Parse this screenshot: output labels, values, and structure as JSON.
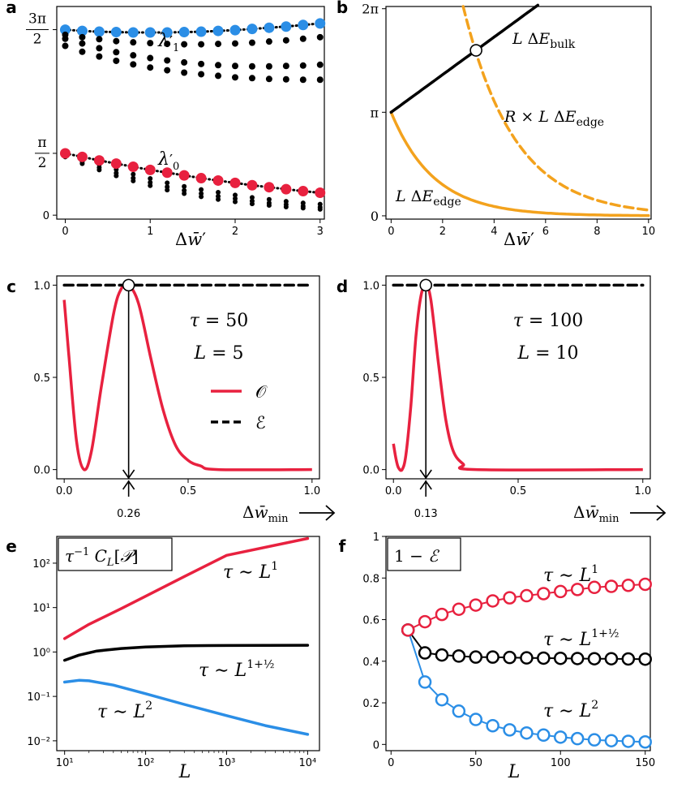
{
  "colors": {
    "red": "#e8213f",
    "blue": "#2b8ee6",
    "black": "#000000",
    "orange": "#f3a21d"
  },
  "panel_labels": [
    "a",
    "b",
    "c",
    "d",
    "e",
    "f"
  ],
  "chart_data": [
    {
      "panel": "a",
      "type": "scatter",
      "xlabel": "Δw̄′",
      "xticks": [
        "0",
        "1",
        "2",
        "3"
      ],
      "yticks": [
        "0",
        "π/2",
        "3π/2"
      ],
      "xlim": [
        -0.1,
        3.05
      ],
      "ylim": [
        -0.1,
        5.3
      ],
      "annotations": [
        "λ′1",
        "λ′0"
      ],
      "x": [
        0,
        0.2,
        0.4,
        0.6,
        0.8,
        1.0,
        1.2,
        1.4,
        1.6,
        1.8,
        2.0,
        2.2,
        2.4,
        2.6,
        2.8,
        3.0
      ],
      "series": [
        {
          "color": "blue",
          "size": 6.5,
          "values": [
            4.71,
            4.68,
            4.66,
            4.65,
            4.64,
            4.64,
            4.64,
            4.65,
            4.66,
            4.68,
            4.7,
            4.73,
            4.76,
            4.79,
            4.83,
            4.87
          ]
        },
        {
          "color": "black",
          "size": 4,
          "values": [
            4.58,
            4.52,
            4.47,
            4.42,
            4.39,
            4.37,
            4.35,
            4.34,
            4.34,
            4.35,
            4.36,
            4.38,
            4.41,
            4.44,
            4.48,
            4.52
          ]
        },
        {
          "color": "black",
          "size": 4,
          "values": [
            4.48,
            4.36,
            4.24,
            4.14,
            4.06,
            3.99,
            3.93,
            3.88,
            3.84,
            3.81,
            3.79,
            3.78,
            3.78,
            3.79,
            3.8,
            3.82
          ]
        },
        {
          "color": "black",
          "size": 4,
          "values": [
            4.3,
            4.15,
            4.03,
            3.92,
            3.83,
            3.75,
            3.68,
            3.62,
            3.58,
            3.54,
            3.5,
            3.48,
            3.46,
            3.45,
            3.44,
            3.44
          ]
        },
        {
          "color": "black",
          "size": 3,
          "values": [
            1.55,
            1.42,
            1.28,
            1.16,
            1.04,
            0.93,
            0.82,
            0.73,
            0.65,
            0.58,
            0.51,
            0.45,
            0.4,
            0.35,
            0.31,
            0.28
          ]
        },
        {
          "color": "black",
          "size": 3,
          "values": [
            1.51,
            1.36,
            1.21,
            1.07,
            0.94,
            0.83,
            0.72,
            0.63,
            0.55,
            0.48,
            0.42,
            0.36,
            0.31,
            0.27,
            0.23,
            0.2
          ]
        },
        {
          "color": "black",
          "size": 3,
          "values": [
            1.48,
            1.31,
            1.15,
            1.0,
            0.87,
            0.75,
            0.64,
            0.55,
            0.47,
            0.4,
            0.34,
            0.29,
            0.25,
            0.21,
            0.18,
            0.15
          ]
        },
        {
          "color": "red",
          "size": 6.5,
          "values": [
            1.57,
            1.48,
            1.39,
            1.31,
            1.23,
            1.15,
            1.08,
            1.01,
            0.94,
            0.88,
            0.82,
            0.76,
            0.71,
            0.66,
            0.61,
            0.57
          ]
        }
      ]
    },
    {
      "panel": "b",
      "type": "line",
      "xlabel": "Δw̄′",
      "xticks": [
        "0",
        "2",
        "4",
        "6",
        "8",
        "10"
      ],
      "yticks": [
        "0",
        "π",
        "2π"
      ],
      "xlim": [
        -0.2,
        10.1
      ],
      "ylim": [
        -0.1,
        6.35
      ],
      "labels": [
        "L ΔE_bulk",
        "R × L ΔE_edge",
        "L ΔE_edge"
      ],
      "marker": {
        "x": 3.3,
        "y": 5.02
      },
      "series": [
        {
          "name": "L ΔE_bulk",
          "color": "black",
          "style": "solid",
          "formula": "pi+0.57x"
        },
        {
          "name": "R × L ΔE_edge",
          "color": "orange",
          "style": "dashed",
          "formula": "8.2*pi*exp(-0.5x)"
        },
        {
          "name": "L ΔE_edge",
          "color": "orange",
          "style": "solid",
          "formula": "pi*exp(-0.6x)"
        }
      ]
    },
    {
      "panel": "c",
      "type": "line",
      "xticks": [
        "0.0",
        "0.5",
        "1.0"
      ],
      "yticks": [
        "0.0",
        "0.5",
        "1.0"
      ],
      "xlim": [
        -0.03,
        1.03
      ],
      "ylim": [
        -0.05,
        1.05
      ],
      "xlabel": "Δw̄min",
      "params": [
        "τ = 50",
        "L = 5"
      ],
      "marker_x": 0.26,
      "marker_label": "0.26",
      "legend": [
        "𝒪",
        "ℰ"
      ],
      "series": [
        {
          "name": "𝒪",
          "color": "red",
          "points": [
            [
              0,
              0.92
            ],
            [
              0.02,
              0.6
            ],
            [
              0.05,
              0.15
            ],
            [
              0.08,
              0.0
            ],
            [
              0.11,
              0.1
            ],
            [
              0.15,
              0.45
            ],
            [
              0.2,
              0.85
            ],
            [
              0.23,
              0.98
            ],
            [
              0.26,
              1.0
            ],
            [
              0.3,
              0.9
            ],
            [
              0.35,
              0.6
            ],
            [
              0.4,
              0.32
            ],
            [
              0.45,
              0.13
            ],
            [
              0.5,
              0.05
            ],
            [
              0.55,
              0.02
            ],
            [
              0.62,
              0.0
            ],
            [
              1.0,
              0.0
            ]
          ]
        },
        {
          "name": "ℰ",
          "color": "black",
          "style": "dashed",
          "points": [
            [
              0,
              1.0
            ],
            [
              1.0,
              1.0
            ]
          ]
        }
      ]
    },
    {
      "panel": "d",
      "type": "line",
      "xticks": [
        "0.0",
        "0.5",
        "1.0"
      ],
      "yticks": [
        "0.0",
        "0.5",
        "1.0"
      ],
      "xlim": [
        -0.03,
        1.03
      ],
      "ylim": [
        -0.05,
        1.05
      ],
      "xlabel": "Δw̄min",
      "params": [
        "τ = 100",
        "L = 10"
      ],
      "marker_x": 0.13,
      "marker_label": "0.13",
      "series": [
        {
          "name": "𝒪",
          "color": "red",
          "points": [
            [
              0,
              0.14
            ],
            [
              0.01,
              0.06
            ],
            [
              0.02,
              0.01
            ],
            [
              0.035,
              0.0
            ],
            [
              0.05,
              0.08
            ],
            [
              0.07,
              0.35
            ],
            [
              0.09,
              0.72
            ],
            [
              0.11,
              0.94
            ],
            [
              0.13,
              1.0
            ],
            [
              0.15,
              0.92
            ],
            [
              0.18,
              0.58
            ],
            [
              0.21,
              0.27
            ],
            [
              0.24,
              0.1
            ],
            [
              0.28,
              0.03
            ],
            [
              0.33,
              0.0
            ],
            [
              1.0,
              0.0
            ]
          ]
        },
        {
          "name": "ℰ",
          "color": "black",
          "style": "dashed",
          "points": [
            [
              0,
              1.0
            ],
            [
              1.0,
              1.0
            ]
          ]
        }
      ]
    },
    {
      "panel": "e",
      "type": "line",
      "xscale": "log",
      "yscale": "log",
      "xlabel": "L",
      "title": "τ⁻¹ C_L[𝒫]",
      "xticks": [
        "10¹",
        "10²",
        "10³",
        "10⁴"
      ],
      "yticks": [
        "10⁻²",
        "10⁻¹",
        "10⁰",
        "10¹",
        "10²"
      ],
      "xlim": [
        8,
        14000
      ],
      "ylim": [
        0.006,
        400
      ],
      "series": [
        {
          "name": "τ ∼ L¹",
          "color": "red",
          "points": [
            [
              10,
              2.0
            ],
            [
              20,
              4.2
            ],
            [
              50,
              9.5
            ],
            [
              100,
              18
            ],
            [
              300,
              50
            ],
            [
              1000,
              150
            ],
            [
              3000,
              420
            ],
            [
              10000,
              1400
            ]
          ],
          "exp_shift": true
        },
        {
          "name": "τ ∼ L^{1+½}",
          "color": "black",
          "points": [
            [
              10,
              0.65
            ],
            [
              15,
              0.85
            ],
            [
              25,
              1.05
            ],
            [
              50,
              1.2
            ],
            [
              100,
              1.3
            ],
            [
              300,
              1.38
            ],
            [
              1000,
              1.4
            ],
            [
              10000,
              1.42
            ]
          ]
        },
        {
          "name": "τ ∼ L²",
          "color": "blue",
          "points": [
            [
              10,
              0.21
            ],
            [
              15,
              0.23
            ],
            [
              20,
              0.225
            ],
            [
              40,
              0.18
            ],
            [
              100,
              0.115
            ],
            [
              300,
              0.066
            ],
            [
              1000,
              0.037
            ],
            [
              3000,
              0.022
            ],
            [
              10000,
              0.014
            ]
          ]
        }
      ]
    },
    {
      "panel": "f",
      "type": "line",
      "xlabel": "L",
      "title": "1 − ℰ",
      "xticks": [
        "0",
        "50",
        "100",
        "150"
      ],
      "yticks": [
        "0",
        "0.2",
        "0.4",
        "0.6",
        "0.8",
        "1"
      ],
      "xlim": [
        -3,
        153
      ],
      "ylim": [
        -0.03,
        1.0
      ],
      "x": [
        10,
        20,
        30,
        40,
        50,
        60,
        70,
        80,
        90,
        100,
        110,
        120,
        130,
        140,
        150
      ],
      "series": [
        {
          "name": "τ ∼ L¹",
          "color": "red",
          "values": [
            0.55,
            0.59,
            0.625,
            0.65,
            0.67,
            0.69,
            0.705,
            0.715,
            0.725,
            0.735,
            0.745,
            0.755,
            0.76,
            0.765,
            0.77
          ]
        },
        {
          "name": "τ ∼ L^{1+½}",
          "color": "black",
          "values": [
            0.55,
            0.44,
            0.43,
            0.425,
            0.42,
            0.42,
            0.418,
            0.416,
            0.415,
            0.414,
            0.413,
            0.412,
            0.412,
            0.411,
            0.41
          ]
        },
        {
          "name": "τ ∼ L²",
          "color": "blue",
          "values": [
            0.55,
            0.3,
            0.215,
            0.16,
            0.12,
            0.09,
            0.07,
            0.055,
            0.045,
            0.035,
            0.028,
            0.022,
            0.018,
            0.015,
            0.012
          ]
        }
      ]
    }
  ]
}
